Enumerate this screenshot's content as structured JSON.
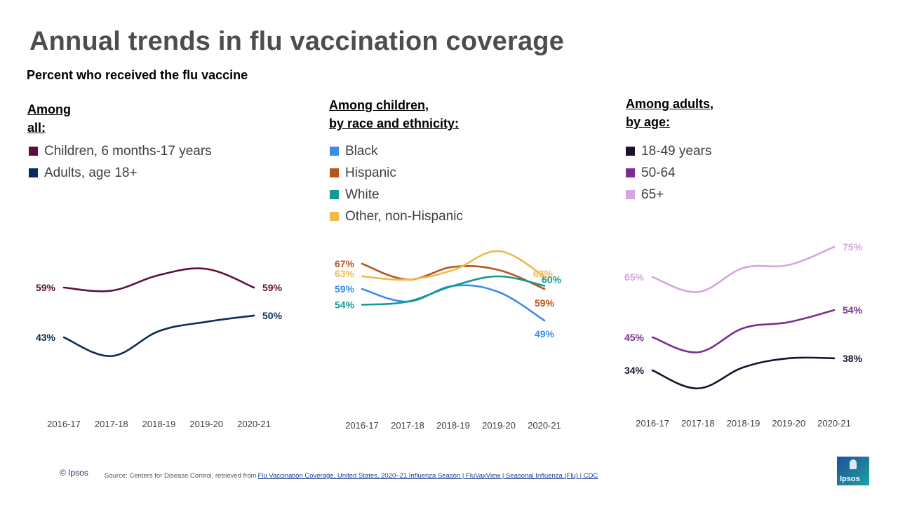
{
  "header": {
    "title": "Annual trends in flu vaccination coverage",
    "subtitle": "Percent who received the flu vaccine"
  },
  "panels": [
    {
      "heading_lines": [
        "Among",
        "all:"
      ],
      "legend": [
        {
          "label": "Children, 6 months-17 years",
          "color": "#5c0f3d"
        },
        {
          "label": "Adults, age 18+",
          "color": "#0b2c5a"
        }
      ]
    },
    {
      "heading_lines": [
        "Among children,",
        "by race and ethnicity:"
      ],
      "legend": [
        {
          "label": "Black",
          "color": "#3a8ee6"
        },
        {
          "label": "Hispanic",
          "color": "#b5561b"
        },
        {
          "label": "White",
          "color": "#149a92"
        },
        {
          "label": "Other, non-Hispanic",
          "color": "#f0b94a"
        }
      ]
    },
    {
      "heading_lines": [
        "Among adults,",
        "by age:"
      ],
      "legend": [
        {
          "label": "18-49 years",
          "color": "#1e1030"
        },
        {
          "label": "50-64",
          "color": "#7b2d93"
        },
        {
          "label": "65+",
          "color": "#d5a6dc"
        }
      ]
    }
  ],
  "chart_data": [
    {
      "type": "line",
      "title": "Among all:",
      "categories": [
        "2016-17",
        "2017-18",
        "2018-19",
        "2019-20",
        "2020-21"
      ],
      "series": [
        {
          "name": "Children, 6 months-17 years",
          "color": "#5c0f3d",
          "values": [
            59,
            58,
            63,
            65,
            59
          ],
          "start_label": "59%",
          "end_label": "59%"
        },
        {
          "name": "Adults, age 18+",
          "color": "#0b2c5a",
          "values": [
            43,
            37,
            45,
            48,
            50
          ],
          "start_label": "43%",
          "end_label": "50%"
        }
      ]
    },
    {
      "type": "line",
      "title": "Among children, by race and ethnicity:",
      "categories": [
        "2016-17",
        "2017-18",
        "2018-19",
        "2019-20",
        "2020-21"
      ],
      "series": [
        {
          "name": "Black",
          "color": "#3a8ee6",
          "values": [
            59,
            55,
            60,
            58,
            49
          ],
          "start_label": "59%",
          "end_label": "49%"
        },
        {
          "name": "Hispanic",
          "color": "#b5561b",
          "values": [
            67,
            62,
            66,
            65,
            59
          ],
          "start_label": "67%",
          "end_label": "59%"
        },
        {
          "name": "White",
          "color": "#149a92",
          "values": [
            54,
            55,
            60,
            63,
            60
          ],
          "start_label": "54%",
          "end_label": "60%"
        },
        {
          "name": "Other, non-Hispanic",
          "color": "#f0b94a",
          "values": [
            63,
            62,
            65,
            71,
            63
          ],
          "start_label": "63%",
          "end_label": "63%"
        }
      ]
    },
    {
      "type": "line",
      "title": "Among adults, by age:",
      "categories": [
        "2016-17",
        "2017-18",
        "2018-19",
        "2019-20",
        "2020-21"
      ],
      "series": [
        {
          "name": "18-49 years",
          "color": "#1e1030",
          "values": [
            34,
            28,
            35,
            38,
            38
          ],
          "start_label": "34%",
          "end_label": "38%"
        },
        {
          "name": "50-64",
          "color": "#7b2d93",
          "values": [
            45,
            40,
            48,
            50,
            54
          ],
          "start_label": "45%",
          "end_label": "54%"
        },
        {
          "name": "65+",
          "color": "#d5a6dc",
          "values": [
            65,
            60,
            68,
            69,
            75
          ],
          "start_label": "65%",
          "end_label": "75%"
        }
      ]
    }
  ],
  "footer": {
    "copyright": "© Ipsos",
    "source_prefix": "Source: Centers for Disease Control, retrieved from",
    "source_link": "Flu Vaccination Coverage, United States, 2020–21 Influenza Season | FluVaxView | Seasonal Influenza (Flu) | CDC",
    "logo_text": "Ipsos"
  }
}
